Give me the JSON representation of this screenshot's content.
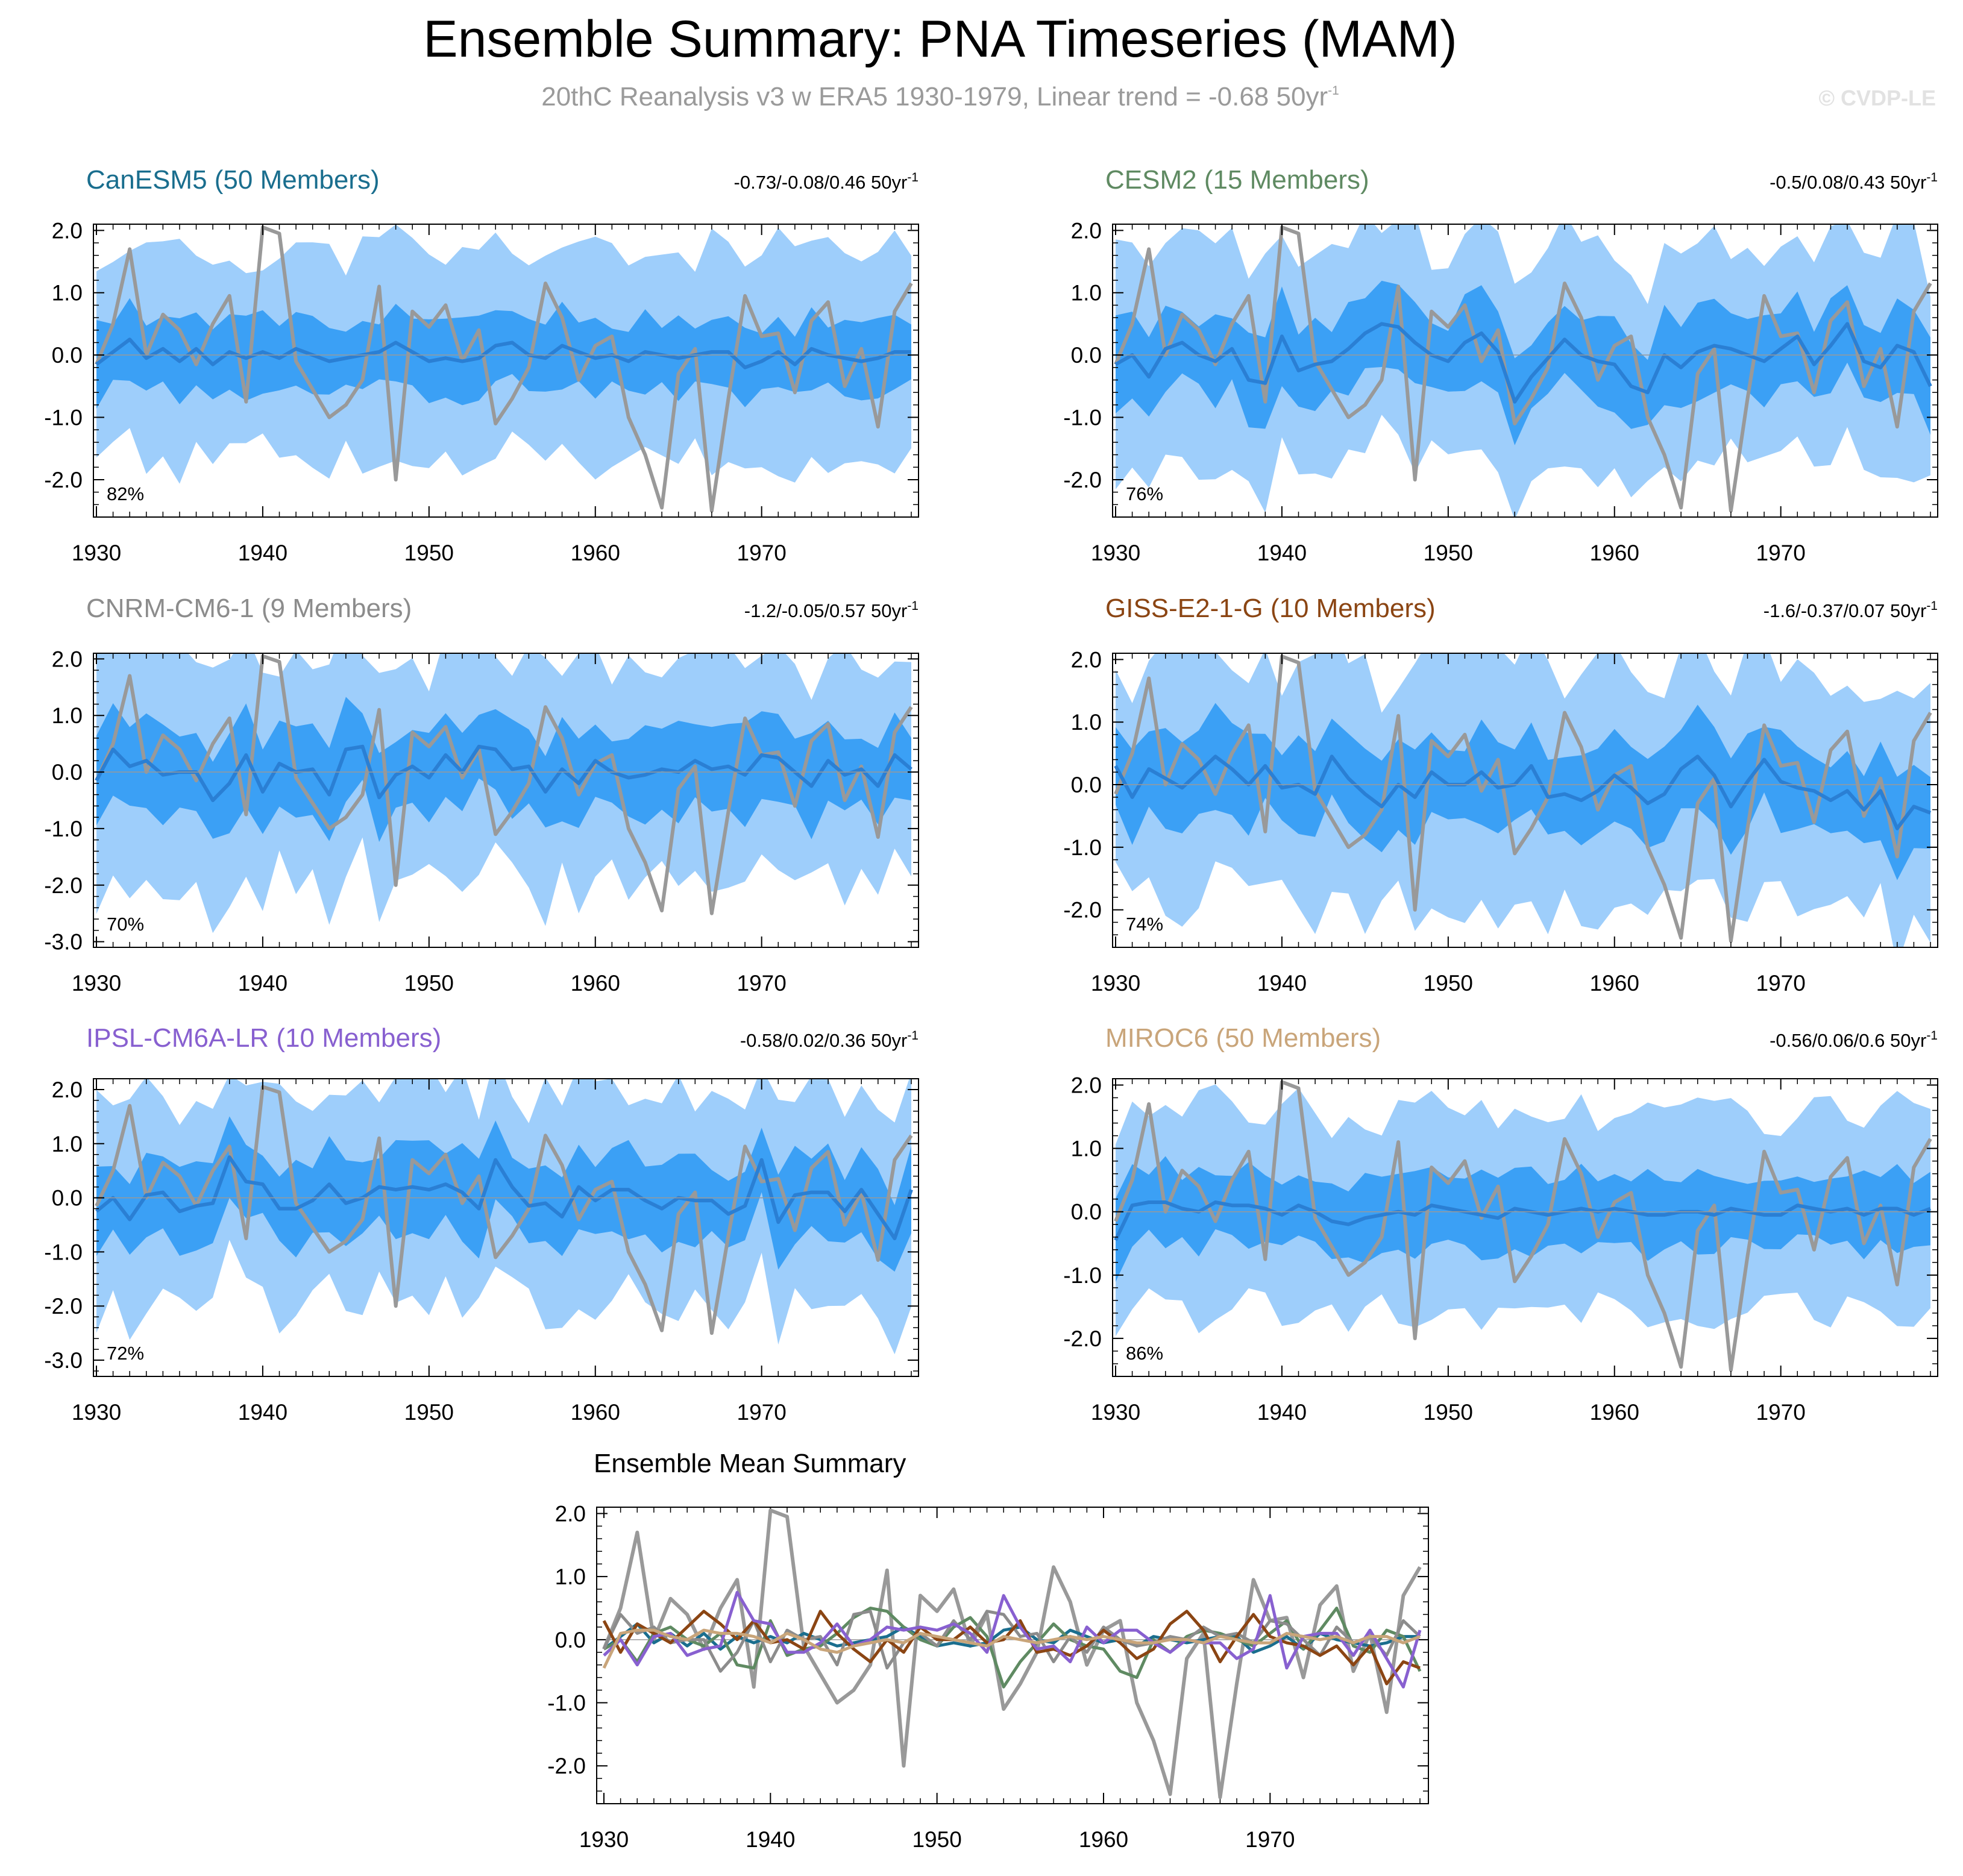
{
  "figure": {
    "title": "Ensemble Summary: PNA Timeseries (MAM)",
    "subtitle": "20thC Reanalysis v3 w ERA5 1930-1979, Linear trend = -0.68 50yr",
    "subtitle_superscript": "-1",
    "watermark": "© CVDP-LE"
  },
  "chart_data": {
    "type": "line",
    "x_start": 1930,
    "x_end": 1979,
    "x_ticks": [
      1930,
      1940,
      1950,
      1960,
      1970
    ],
    "observed": {
      "name": "20thC Reanalysis v3 w ERA5",
      "color": "#999999",
      "values": [
        -0.15,
        0.5,
        1.7,
        0.0,
        0.65,
        0.4,
        -0.15,
        0.5,
        0.95,
        -0.75,
        2.05,
        1.95,
        -0.1,
        -0.55,
        -1.0,
        -0.8,
        -0.4,
        1.1,
        -2.0,
        0.7,
        0.45,
        0.8,
        -0.1,
        0.4,
        -1.1,
        -0.7,
        -0.2,
        1.15,
        0.6,
        -0.4,
        0.15,
        0.3,
        -1.0,
        -1.6,
        -2.45,
        -0.3,
        0.1,
        -2.5,
        -0.7,
        0.95,
        0.3,
        0.35,
        -0.6,
        0.55,
        0.85,
        -0.5,
        0.1,
        -1.15,
        0.7,
        1.15
      ]
    },
    "panels": [
      {
        "name": "CanESM5 (50 Members)",
        "title_color": "#1a6e8e",
        "trend_text": "-0.73/-0.08/0.46 50yr",
        "trend_superscript": "-1",
        "percent": "82%",
        "y_range": [
          -2.6,
          2.1
        ],
        "y_ticks": [
          2.0,
          1.0,
          0.0,
          -1.0,
          -2.0
        ],
        "y_tick_labels": [
          "2.0",
          "1.0",
          "0.0",
          "-1.0",
          "-2.0"
        ],
        "ensemble_mean": [
          -0.15,
          0.05,
          0.25,
          -0.05,
          0.1,
          -0.1,
          0.1,
          -0.15,
          0.05,
          -0.05,
          0.05,
          -0.05,
          0.1,
          0.0,
          -0.1,
          -0.05,
          0.0,
          0.05,
          0.2,
          0.05,
          -0.1,
          -0.05,
          -0.1,
          -0.05,
          0.15,
          0.2,
          0.0,
          -0.05,
          0.15,
          0.05,
          -0.05,
          0.0,
          -0.1,
          0.05,
          0.0,
          -0.05,
          0.0,
          0.05,
          0.05,
          -0.2,
          -0.1,
          0.05,
          -0.15,
          0.1,
          0.0,
          -0.05,
          -0.1,
          -0.05,
          0.05,
          0.05
        ],
        "band_amp": 0.55,
        "spread": 1.6,
        "seed": 11
      },
      {
        "name": "CESM2 (15 Members)",
        "title_color": "#5f8a62",
        "trend_text": "-0.5/0.08/0.43 50yr",
        "trend_superscript": "-1",
        "percent": "76%",
        "y_range": [
          -2.6,
          2.1
        ],
        "y_ticks": [
          2.0,
          1.0,
          0.0,
          -1.0,
          -2.0
        ],
        "y_tick_labels": [
          "2.0",
          "1.0",
          "0.0",
          "-1.0",
          "-2.0"
        ],
        "ensemble_mean": [
          -0.15,
          0.0,
          -0.35,
          0.1,
          0.2,
          0.0,
          -0.1,
          0.1,
          -0.4,
          -0.45,
          0.3,
          -0.25,
          -0.15,
          -0.1,
          0.1,
          0.35,
          0.5,
          0.45,
          0.2,
          0.0,
          -0.1,
          0.2,
          0.35,
          0.05,
          -0.75,
          -0.35,
          -0.05,
          0.25,
          0.0,
          -0.1,
          -0.15,
          -0.5,
          -0.6,
          0.0,
          -0.2,
          0.05,
          0.15,
          0.1,
          0.0,
          -0.1,
          0.1,
          0.3,
          -0.15,
          0.15,
          0.5,
          -0.1,
          -0.2,
          0.15,
          0.05,
          -0.5
        ],
        "band_amp": 0.6,
        "spread": 1.7,
        "seed": 23
      },
      {
        "name": "CNRM-CM6-1 (9 Members)",
        "title_color": "#8c8c8c",
        "trend_text": "-1.2/-0.05/0.57 50yr",
        "trend_superscript": "-1",
        "percent": "70%",
        "y_range": [
          -3.1,
          2.1
        ],
        "y_ticks": [
          2.0,
          1.0,
          0.0,
          -1.0,
          -2.0,
          -3.0
        ],
        "y_tick_labels": [
          "2.0",
          "1.0",
          "0.0",
          "-1.0",
          "-2.0",
          "-3.0"
        ],
        "ensemble_mean": [
          -0.15,
          0.4,
          0.1,
          0.2,
          -0.05,
          0.0,
          0.0,
          -0.5,
          -0.2,
          0.3,
          -0.35,
          0.15,
          0.0,
          0.05,
          -0.4,
          0.4,
          0.45,
          -0.45,
          -0.05,
          0.1,
          -0.1,
          0.3,
          0.0,
          0.45,
          0.4,
          0.05,
          0.1,
          -0.35,
          0.05,
          -0.2,
          0.2,
          0.0,
          -0.1,
          -0.05,
          0.05,
          0.0,
          0.2,
          0.05,
          0.1,
          -0.05,
          0.3,
          0.25,
          0.0,
          -0.25,
          0.2,
          -0.05,
          0.05,
          -0.25,
          0.3,
          0.05
        ],
        "band_amp": 0.7,
        "spread": 1.9,
        "seed": 37
      },
      {
        "name": "GISS-E2-1-G (10 Members)",
        "title_color": "#8b4513",
        "trend_text": "-1.6/-0.37/0.07 50yr",
        "trend_superscript": "-1",
        "percent": "74%",
        "y_range": [
          -2.6,
          2.1
        ],
        "y_ticks": [
          2.0,
          1.0,
          0.0,
          -1.0,
          -2.0
        ],
        "y_tick_labels": [
          "2.0",
          "1.0",
          "0.0",
          "-1.0",
          "-2.0"
        ],
        "ensemble_mean": [
          0.3,
          -0.2,
          0.25,
          0.1,
          -0.05,
          0.2,
          0.45,
          0.25,
          0.0,
          0.3,
          -0.05,
          0.0,
          -0.15,
          0.45,
          0.1,
          -0.15,
          -0.35,
          0.0,
          -0.2,
          0.2,
          0.0,
          0.0,
          0.2,
          -0.05,
          0.0,
          0.3,
          -0.2,
          -0.15,
          -0.25,
          -0.1,
          0.15,
          -0.05,
          -0.3,
          -0.15,
          0.25,
          0.45,
          0.15,
          -0.35,
          0.05,
          0.4,
          0.05,
          -0.05,
          -0.1,
          -0.25,
          -0.1,
          -0.4,
          -0.1,
          -0.7,
          -0.35,
          -0.45
        ],
        "band_amp": 0.65,
        "spread": 1.8,
        "seed": 51
      },
      {
        "name": "IPSL-CM6A-LR (10 Members)",
        "title_color": "#8860d0",
        "trend_text": "-0.58/0.02/0.36 50yr",
        "trend_superscript": "-1",
        "percent": "72%",
        "y_range": [
          -3.3,
          2.2
        ],
        "y_ticks": [
          2.0,
          1.0,
          0.0,
          -1.0,
          -2.0,
          -3.0
        ],
        "y_tick_labels": [
          "2.0",
          "1.0",
          "0.0",
          "-1.0",
          "-2.0",
          "-3.0"
        ],
        "ensemble_mean": [
          -0.25,
          0.0,
          -0.4,
          0.05,
          0.1,
          -0.25,
          -0.15,
          -0.1,
          0.75,
          0.3,
          0.25,
          -0.2,
          -0.2,
          -0.05,
          0.25,
          -0.1,
          0.0,
          0.2,
          0.15,
          0.2,
          0.15,
          0.25,
          0.1,
          -0.2,
          0.7,
          0.2,
          -0.15,
          -0.1,
          -0.35,
          0.2,
          -0.05,
          0.15,
          0.15,
          -0.05,
          -0.2,
          0.0,
          -0.05,
          -0.05,
          -0.3,
          -0.15,
          0.7,
          -0.45,
          0.05,
          0.1,
          0.1,
          -0.25,
          0.15,
          -0.3,
          -0.75,
          0.15
        ],
        "band_amp": 0.7,
        "spread": 1.9,
        "seed": 67
      },
      {
        "name": "MIROC6 (50 Members)",
        "title_color": "#c9a57a",
        "trend_text": "-0.56/0.06/0.6 50yr",
        "trend_superscript": "-1",
        "percent": "86%",
        "y_range": [
          -2.6,
          2.1
        ],
        "y_ticks": [
          2.0,
          1.0,
          0.0,
          -1.0,
          -2.0
        ],
        "y_tick_labels": [
          "2.0",
          "1.0",
          "0.0",
          "-1.0",
          "-2.0"
        ],
        "ensemble_mean": [
          -0.45,
          0.1,
          0.15,
          0.15,
          0.05,
          0.0,
          0.15,
          0.1,
          0.1,
          0.05,
          -0.05,
          0.1,
          0.0,
          -0.15,
          -0.2,
          -0.1,
          -0.05,
          0.0,
          -0.05,
          0.1,
          0.05,
          0.0,
          -0.05,
          -0.1,
          0.05,
          0.0,
          -0.05,
          0.0,
          0.05,
          0.0,
          0.05,
          0.0,
          -0.05,
          -0.05,
          0.0,
          0.0,
          -0.05,
          0.05,
          0.0,
          -0.05,
          -0.05,
          0.1,
          0.05,
          0.0,
          0.05,
          -0.05,
          0.05,
          0.05,
          -0.05,
          0.05
        ],
        "band_amp": 0.55,
        "spread": 1.55,
        "seed": 79
      }
    ],
    "summary": {
      "title": "Ensemble Mean Summary",
      "y_range": [
        -2.6,
        2.1
      ],
      "y_ticks": [
        2.0,
        1.0,
        0.0,
        -1.0,
        -2.0
      ],
      "y_tick_labels": [
        "2.0",
        "1.0",
        "0.0",
        "-1.0",
        "-2.0"
      ],
      "series": [
        {
          "name": "CanESM5",
          "color": "#1a6e8e"
        },
        {
          "name": "CESM2",
          "color": "#5f8a62"
        },
        {
          "name": "CNRM-CM6-1",
          "color": "#8c8c8c"
        },
        {
          "name": "GISS-E2-1-G",
          "color": "#8b4513"
        },
        {
          "name": "IPSL-CM6A-LR",
          "color": "#8860d0"
        },
        {
          "name": "MIROC6",
          "color": "#c9a57a"
        }
      ]
    }
  }
}
